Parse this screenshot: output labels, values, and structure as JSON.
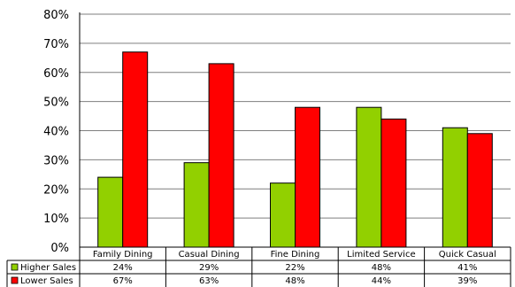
{
  "chart_data": {
    "type": "bar",
    "categories": [
      "Family Dining",
      "Casual Dining",
      "Fine Dining",
      "Limited Service",
      "Quick Casual"
    ],
    "series": [
      {
        "name": "Higher Sales",
        "values": [
          24,
          29,
          22,
          48,
          41
        ],
        "labels": [
          "24%",
          "29%",
          "22%",
          "48%",
          "41%"
        ],
        "color": "#92d000"
      },
      {
        "name": "Lower Sales",
        "values": [
          67,
          63,
          48,
          44,
          39
        ],
        "labels": [
          "67%",
          "63%",
          "48%",
          "44%",
          "39%"
        ],
        "color": "#ff0000"
      }
    ],
    "y_ticks": [
      "0%",
      "10%",
      "20%",
      "30%",
      "40%",
      "50%",
      "60%",
      "70%",
      "80%"
    ],
    "ylim": [
      0,
      80
    ],
    "grid": true,
    "legend": "data-table"
  }
}
